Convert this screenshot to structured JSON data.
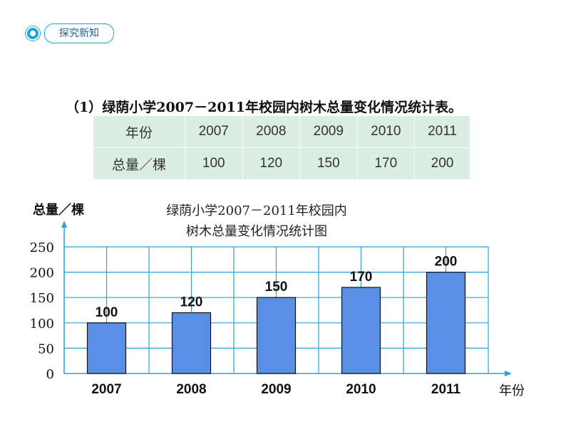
{
  "header": {
    "badge_label": "探究新知"
  },
  "table": {
    "title": "（1）绿荫小学2007－2011年校园内树木总量变化情况统计表。",
    "row_headers": [
      "年份",
      "总量／棵"
    ],
    "years": [
      "2007",
      "2008",
      "2009",
      "2010",
      "2011"
    ],
    "totals": [
      "100",
      "120",
      "150",
      "170",
      "200"
    ]
  },
  "chart_data": {
    "type": "bar",
    "title_line1": "绿荫小学2007－2011年校园内",
    "title_line2": "树木总量变化情况统计图",
    "ylabel": "总量／棵",
    "xlabel": "年份",
    "categories": [
      "2007",
      "2008",
      "2009",
      "2010",
      "2011"
    ],
    "values": [
      100,
      120,
      150,
      170,
      200
    ],
    "ylim": [
      0,
      250
    ],
    "yticks": [
      0,
      50,
      100,
      150,
      200,
      250
    ],
    "grid": true,
    "bar_color": "#5a8fe6",
    "grid_color": "#2f9fdc"
  }
}
